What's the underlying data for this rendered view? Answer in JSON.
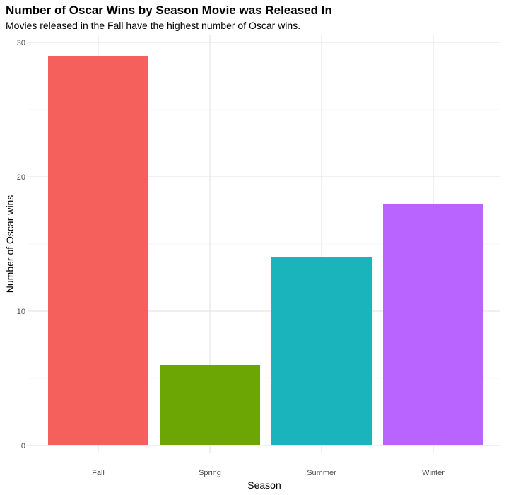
{
  "chart_data": {
    "type": "bar",
    "title": "Number of Oscar Wins by Season Movie was Released In",
    "subtitle": "Movies released in the Fall have the highest number of Oscar wins.",
    "xlabel": "Season",
    "ylabel": "Number of Oscar wins",
    "categories": [
      "Fall",
      "Spring",
      "Summer",
      "Winter"
    ],
    "values": [
      29,
      6,
      14,
      18
    ],
    "colors": [
      "#F8766D",
      "#7CAE00",
      "#00BFC4",
      "#C77CFF"
    ],
    "bar_colors_rendered": [
      "#F5605C",
      "#6CA605",
      "#1AB5BC",
      "#B964FF"
    ],
    "yticks": [
      0,
      10,
      20,
      30
    ],
    "ylim": [
      0,
      30
    ],
    "grid": true,
    "legend": "none"
  }
}
